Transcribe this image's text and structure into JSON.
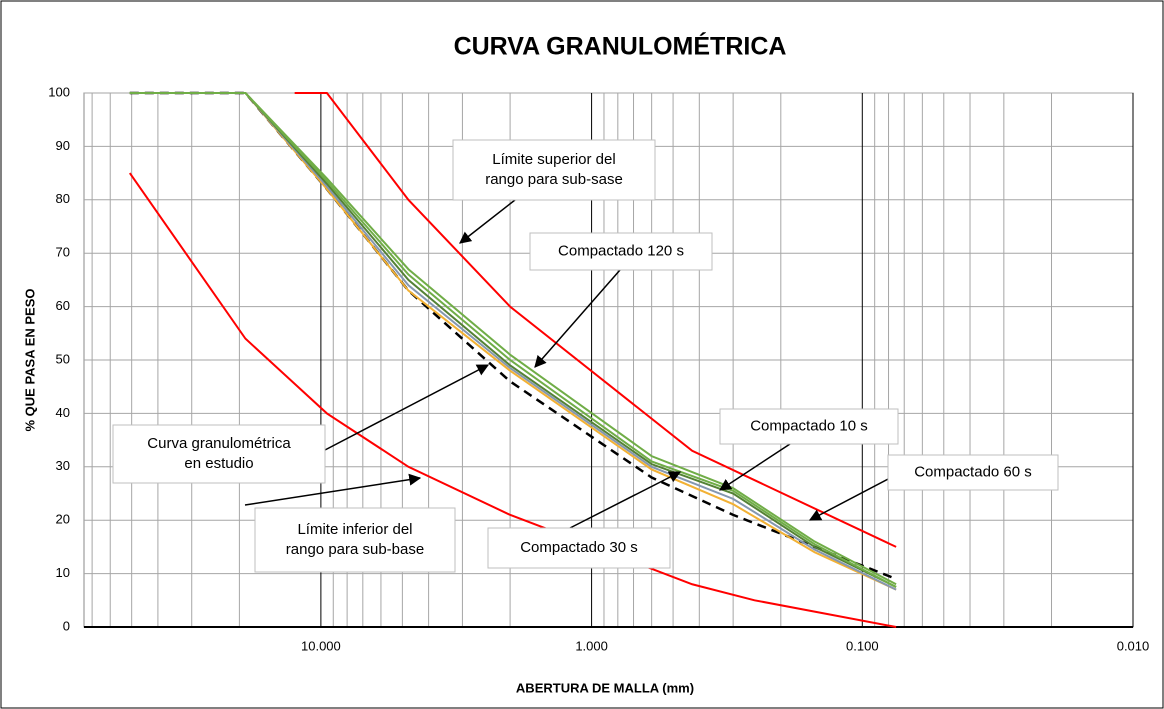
{
  "chart_data": {
    "type": "line",
    "title": "CURVA GRANULOMÉTRICA",
    "x_label": "ABERTURA DE MALLA (mm)",
    "y_label": "% QUE PASA EN PESO",
    "x_log": true,
    "x_reversed": true,
    "grid": true,
    "xlim": [
      75,
      0.01
    ],
    "ylim": [
      0,
      100
    ],
    "xticks": [
      {
        "value": 10,
        "label": "10.000"
      },
      {
        "value": 1,
        "label": "1.000"
      },
      {
        "value": 0.1,
        "label": "0.100"
      },
      {
        "value": 0.01,
        "label": "0.010"
      }
    ],
    "yticks": [
      0,
      10,
      20,
      30,
      40,
      50,
      60,
      70,
      80,
      90,
      100
    ],
    "series": [
      {
        "color": "#ff0000",
        "x": [
          12.5,
          9.5,
          4.75,
          2.0,
          0.425,
          0.075
        ],
        "values": [
          100,
          100,
          80,
          60,
          33,
          15
        ]
      },
      {
        "color": "#ff0000",
        "x": [
          50.8,
          19,
          9.5,
          4.75,
          2.0,
          0.425,
          0.25,
          0.075
        ],
        "values": [
          85,
          54,
          40,
          30,
          21,
          8,
          5,
          0
        ]
      },
      {
        "color": "#000000",
        "dash": true,
        "x": [
          50.8,
          19,
          9.5,
          4.75,
          2.0,
          0.6,
          0.3,
          0.15,
          0.075
        ],
        "values": [
          100,
          100,
          82,
          63,
          46,
          28,
          21,
          15,
          9
        ]
      },
      {
        "color": "#f2b134",
        "x": [
          50.8,
          19,
          9.5,
          4.75,
          2.0,
          0.6,
          0.3,
          0.15,
          0.075
        ],
        "values": [
          100,
          100,
          82,
          63,
          48,
          29.5,
          23,
          14,
          7
        ]
      },
      {
        "color": "#8497b0",
        "x": [
          50.8,
          19,
          9.5,
          4.75,
          2.0,
          0.6,
          0.3,
          0.15,
          0.075
        ],
        "values": [
          100,
          100,
          82.5,
          64,
          48.5,
          30,
          24,
          14.5,
          7
        ]
      },
      {
        "color": "#548235",
        "x": [
          50.8,
          19,
          9.5,
          4.75,
          2.0,
          0.6,
          0.3,
          0.15,
          0.075
        ],
        "values": [
          100,
          100,
          83,
          65,
          49,
          30.5,
          25,
          15,
          7.5
        ]
      },
      {
        "color": "#70ad47",
        "x": [
          50.8,
          19,
          9.5,
          4.75,
          2.0,
          0.6,
          0.3,
          0.15,
          0.075
        ],
        "values": [
          100,
          100,
          83.5,
          66,
          50,
          31,
          25.5,
          15.5,
          7.5
        ]
      },
      {
        "color": "#70ad47",
        "x": [
          50.8,
          19,
          9.5,
          4.75,
          2.0,
          0.6,
          0.3,
          0.15,
          0.075
        ],
        "values": [
          100,
          100,
          84,
          67,
          51,
          32,
          26,
          16,
          8
        ]
      }
    ],
    "annotations": [
      {
        "text": [
          "Límite superior del",
          "rango para sub-sase"
        ]
      },
      {
        "text": [
          "Compactado 120 s"
        ]
      },
      {
        "text": [
          "Curva granulométrica",
          "en estudio"
        ]
      },
      {
        "text": [
          "Límite inferior del",
          "rango para sub-base"
        ]
      },
      {
        "text": [
          "Compactado 10 s"
        ]
      },
      {
        "text": [
          "Compactado 60 s"
        ]
      },
      {
        "text": [
          "Compactado 30 s"
        ]
      }
    ]
  }
}
